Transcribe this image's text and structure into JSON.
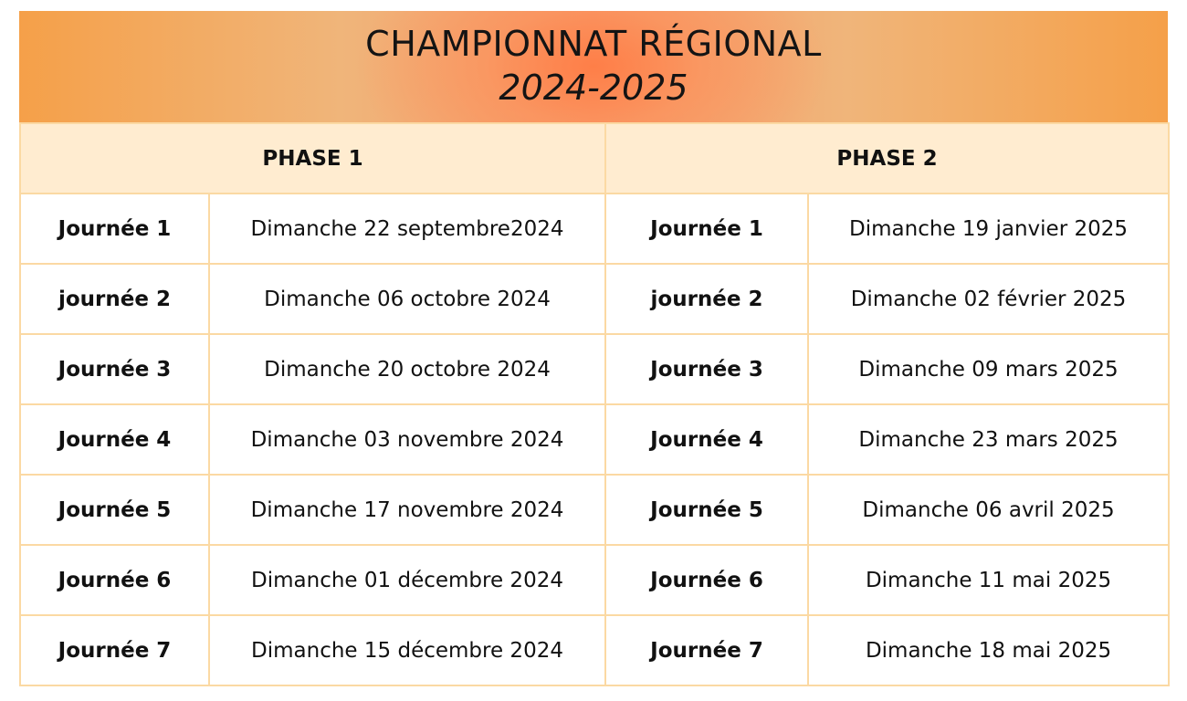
{
  "title": "CHAMPIONNAT RÉGIONAL",
  "season": "2024-2025",
  "phases": [
    {
      "label": "PHASE 1",
      "rows": [
        {
          "day": "Journée 1",
          "date": "Dimanche 22 septembre2024"
        },
        {
          "day": "journée 2",
          "date": "Dimanche 06 octobre 2024"
        },
        {
          "day": "Journée 3",
          "date": "Dimanche 20 octobre 2024"
        },
        {
          "day": "Journée 4",
          "date": "Dimanche 03 novembre 2024"
        },
        {
          "day": "Journée 5",
          "date": "Dimanche 17 novembre 2024"
        },
        {
          "day": "Journée 6",
          "date": "Dimanche 01 décembre 2024"
        },
        {
          "day": "Journée 7",
          "date": "Dimanche 15 décembre 2024"
        }
      ]
    },
    {
      "label": "PHASE 2",
      "rows": [
        {
          "day": "Journée 1",
          "date": "Dimanche 19 janvier 2025"
        },
        {
          "day": "journée 2",
          "date": "Dimanche 02 février 2025"
        },
        {
          "day": "Journée 3",
          "date": "Dimanche 09 mars 2025"
        },
        {
          "day": "Journée 4",
          "date": "Dimanche 23 mars 2025"
        },
        {
          "day": "Journée 5",
          "date": "Dimanche 06 avril 2025"
        },
        {
          "day": "Journée 6",
          "date": "Dimanche 11 mai 2025"
        },
        {
          "day": "Journée 7",
          "date": "Dimanche 18 mai 2025"
        }
      ]
    }
  ],
  "colors": {
    "banner_edge": "#f5a049",
    "banner_center": "#ff8a55",
    "header_fill": "#ffecd0",
    "grid_line": "#fbd9a3"
  }
}
